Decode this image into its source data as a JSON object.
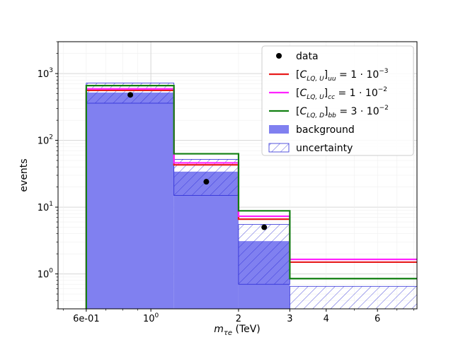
{
  "chart_data": {
    "type": "bar",
    "xlabel": "m",
    "xlabel_sub": "τe",
    "xlabel_unit": " (TeV)",
    "ylabel": "events",
    "xscale": "log",
    "yscale": "log",
    "xlim": [
      0.48,
      8.2
    ],
    "ylim": [
      0.3,
      3000
    ],
    "grid": true,
    "legend_position": "top-right",
    "bin_edges": [
      0.6,
      1.2,
      2.0,
      3.0,
      8.2
    ],
    "series": [
      {
        "name": "background",
        "kind": "filled-step",
        "color": "#8080f0",
        "values": [
          520,
          34,
          3.1,
          0.08
        ]
      },
      {
        "name": "uncertainty",
        "kind": "hatched-band",
        "color": "#2b2bd6",
        "low": [
          360,
          15,
          0.7,
          0.08
        ],
        "high": [
          720,
          52,
          5.5,
          0.65
        ]
      },
      {
        "name": "data",
        "kind": "points",
        "color": "#000000",
        "x": [
          0.85,
          1.55,
          2.45
        ],
        "y": [
          480,
          24,
          5
        ]
      },
      {
        "name": "[C_{LQ, U}]_{uu} = 1·10^{-3}",
        "kind": "step",
        "color": "#e81c1c",
        "values": [
          560,
          43,
          6.6,
          1.5
        ]
      },
      {
        "name": "[C_{LQ, U}]_{cc} = 1·10^{-2}",
        "kind": "step",
        "color": "#ff22ff",
        "values": [
          590,
          46,
          7.3,
          1.65
        ]
      },
      {
        "name": "[C_{LQ, D}]_{bb} = 3·10^{-2}",
        "kind": "step",
        "color": "#128012",
        "values": [
          660,
          63,
          8.8,
          0.85
        ]
      }
    ],
    "x_ticks": [
      {
        "value": 0.6,
        "label": "6e-01"
      },
      {
        "value": 1,
        "label": "10",
        "sup": "0"
      },
      {
        "value": 2,
        "label": "2"
      },
      {
        "value": 3,
        "label": "3"
      },
      {
        "value": 4,
        "label": "4"
      },
      {
        "value": 6,
        "label": "6"
      }
    ],
    "y_ticks": [
      {
        "value": 1,
        "label": "10",
        "sup": "0"
      },
      {
        "value": 10,
        "label": "10",
        "sup": "1"
      },
      {
        "value": 100,
        "label": "10",
        "sup": "2"
      },
      {
        "value": 1000,
        "label": "10",
        "sup": "3"
      }
    ],
    "legend": [
      {
        "label": "data",
        "marker": "dot",
        "color": "#000000"
      },
      {
        "label": "[C",
        "sub": "LQ, U",
        "after": "]",
        "sub2": "uu",
        "tail": " = 1 · 10",
        "sup": "−3",
        "marker": "line",
        "color": "#e81c1c"
      },
      {
        "label": "[C",
        "sub": "LQ, U",
        "after": "]",
        "sub2": "cc",
        "tail": " = 1 · 10",
        "sup": "−2",
        "marker": "line",
        "color": "#ff22ff"
      },
      {
        "label": "[C",
        "sub": "LQ, D",
        "after": "]",
        "sub2": "bb",
        "tail": " = 3 · 10",
        "sup": "−2",
        "marker": "line",
        "color": "#128012"
      },
      {
        "label": "background",
        "marker": "patch",
        "color": "#8080f0"
      },
      {
        "label": "uncertainty",
        "marker": "hatch",
        "color": "#2b2bd6"
      }
    ]
  }
}
